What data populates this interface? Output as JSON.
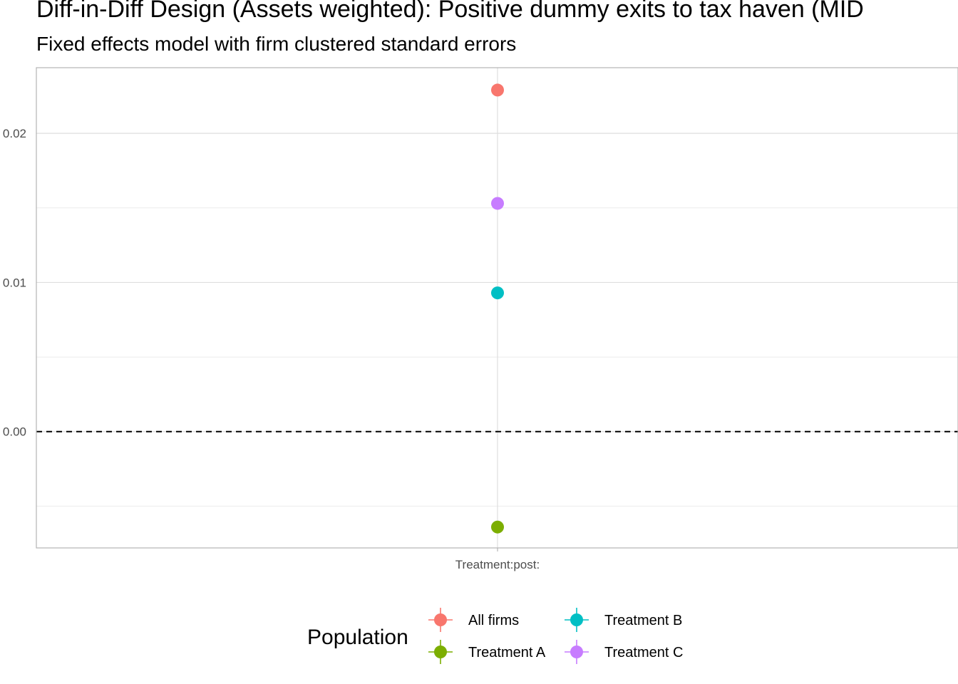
{
  "chart_data": {
    "type": "scatter",
    "title": "Diff-in-Diff Design (Assets weighted): Positive dummy exits to tax haven (MID",
    "subtitle": "Fixed effects model with firm clustered standard errors",
    "xlabel": "",
    "ylabel": "",
    "categories": [
      "Treatment:post:"
    ],
    "ylim": [
      -0.0078,
      0.0244
    ],
    "yticks": [
      0.0,
      0.01,
      0.02
    ],
    "ytick_labels": [
      "0.00",
      "0.01",
      "0.02"
    ],
    "reference_line": {
      "y": 0,
      "style": "dashed"
    },
    "grid": true,
    "legend": {
      "title": "Population",
      "position": "bottom"
    },
    "series": [
      {
        "name": "All firms",
        "color": "#F8766D",
        "values": [
          0.0229
        ]
      },
      {
        "name": "Treatment A",
        "color": "#7CAE00",
        "values": [
          -0.0064
        ]
      },
      {
        "name": "Treatment B",
        "color": "#00BFC4",
        "values": [
          0.0093
        ]
      },
      {
        "name": "Treatment C",
        "color": "#C77CFF",
        "values": [
          0.0153
        ]
      }
    ]
  }
}
